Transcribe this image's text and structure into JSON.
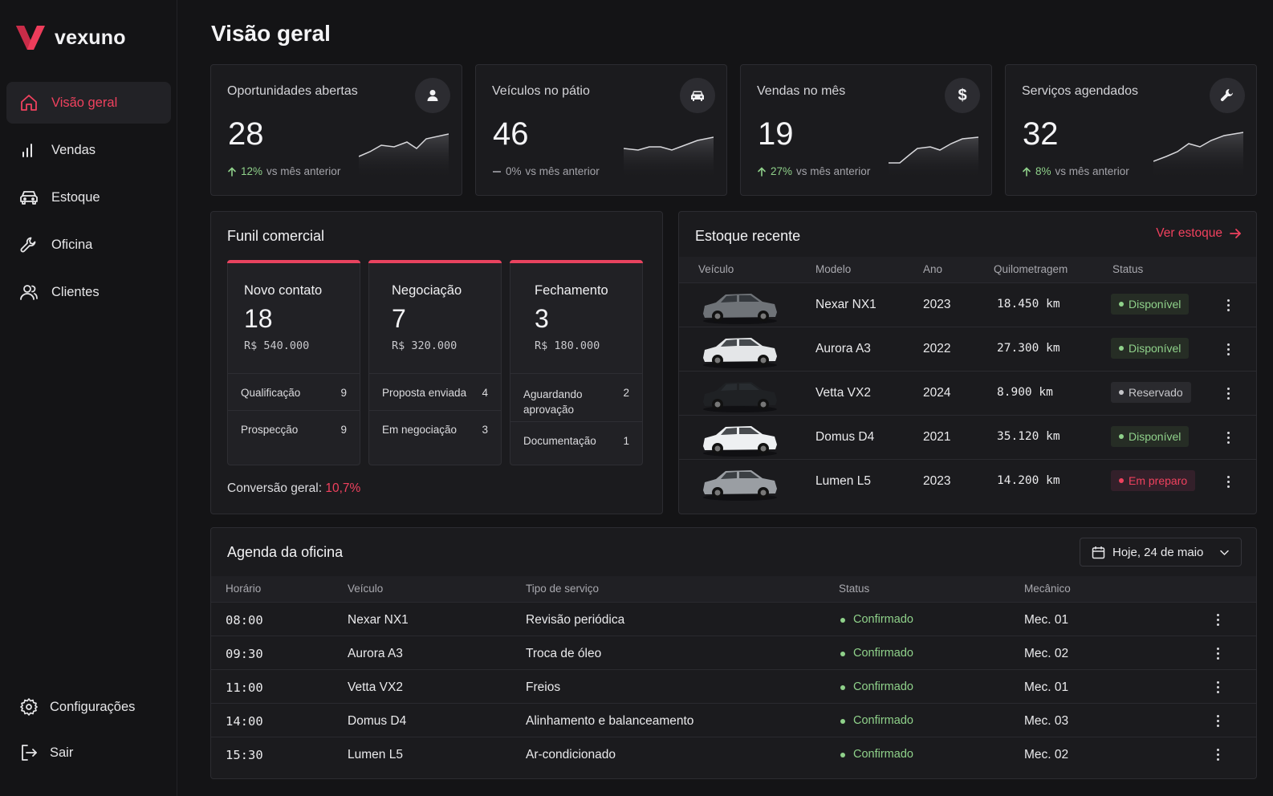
{
  "brand": {
    "name": "vexuno",
    "accent": "#f0415e"
  },
  "nav": {
    "items": [
      {
        "label": "Visão geral",
        "icon": "home-icon",
        "active": true
      },
      {
        "label": "Vendas",
        "icon": "bar-chart-icon"
      },
      {
        "label": "Estoque",
        "icon": "car-icon"
      },
      {
        "label": "Oficina",
        "icon": "wrench-icon"
      },
      {
        "label": "Clientes",
        "icon": "users-icon"
      }
    ],
    "bottom": [
      {
        "label": "Configurações",
        "icon": "gear-icon"
      },
      {
        "label": "Sair",
        "icon": "logout-icon"
      }
    ]
  },
  "page": {
    "title": "Visão geral"
  },
  "kpis": [
    {
      "title": "Oportunidades abertas",
      "value": "28",
      "pct": "12%",
      "suffix": "vs mês anterior",
      "trend": "up",
      "icon": "user-icon"
    },
    {
      "title": "Veículos no pátio",
      "value": "46",
      "pct": "0%",
      "suffix": "vs mês anterior",
      "trend": "flat",
      "icon": "car-icon"
    },
    {
      "title": "Vendas no mês",
      "value": "19",
      "pct": "27%",
      "suffix": "vs mês anterior",
      "trend": "up",
      "icon": "dollar-icon"
    },
    {
      "title": "Serviços agendados",
      "value": "32",
      "pct": "8%",
      "suffix": "vs mês anterior",
      "trend": "up",
      "icon": "wrench-icon"
    }
  ],
  "funnel": {
    "title": "Funil comercial",
    "stages": [
      {
        "name": "Novo contato",
        "count": "18",
        "amount": "R$ 540.000",
        "sub": [
          {
            "label": "Qualificação",
            "value": "9"
          },
          {
            "label": "Prospecção",
            "value": "9"
          }
        ]
      },
      {
        "name": "Negociação",
        "count": "7",
        "amount": "R$ 320.000",
        "sub": [
          {
            "label": "Proposta enviada",
            "value": "4"
          },
          {
            "label": "Em negociação",
            "value": "3"
          }
        ]
      },
      {
        "name": "Fechamento",
        "count": "3",
        "amount": "R$ 180.000",
        "sub": [
          {
            "label": "Aguardando aprovação",
            "value": "2"
          },
          {
            "label": "Documentação",
            "value": "1"
          }
        ]
      }
    ],
    "conversion_label": "Conversão geral:",
    "conversion_value": "10,7%"
  },
  "stock": {
    "title": "Estoque recente",
    "link": "Ver estoque",
    "columns": [
      "Veículo",
      "Modelo",
      "Ano",
      "Quilometragem",
      "Status"
    ],
    "rows": [
      {
        "model": "Nexar NX1",
        "year": "2023",
        "km": "18.450 km",
        "status": "Disponível",
        "status_kind": "ok",
        "car_color": "#6f7378"
      },
      {
        "model": "Aurora A3",
        "year": "2022",
        "km": "27.300 km",
        "status": "Disponível",
        "status_kind": "ok",
        "car_color": "#e4e6e8"
      },
      {
        "model": "Vetta VX2",
        "year": "2024",
        "km": "8.900 km",
        "status": "Reservado",
        "status_kind": "res",
        "car_color": "#1f2124"
      },
      {
        "model": "Domus D4",
        "year": "2021",
        "km": "35.120 km",
        "status": "Disponível",
        "status_kind": "ok",
        "car_color": "#eef0f2"
      },
      {
        "model": "Lumen L5",
        "year": "2023",
        "km": "14.200 km",
        "status": "Em preparo",
        "status_kind": "prep",
        "car_color": "#9a9ea3"
      }
    ]
  },
  "agenda": {
    "title": "Agenda da oficina",
    "date": "Hoje, 24 de maio",
    "columns": [
      "Horário",
      "Veículo",
      "Tipo de serviço",
      "Status",
      "Mecânico"
    ],
    "rows": [
      {
        "time": "08:00",
        "vehicle": "Nexar NX1",
        "service": "Revisão periódica",
        "status": "Confirmado",
        "mechanic": "Mec. 01"
      },
      {
        "time": "09:30",
        "vehicle": "Aurora A3",
        "service": "Troca de óleo",
        "status": "Confirmado",
        "mechanic": "Mec. 02"
      },
      {
        "time": "11:00",
        "vehicle": "Vetta VX2",
        "service": "Freios",
        "status": "Confirmado",
        "mechanic": "Mec. 01"
      },
      {
        "time": "14:00",
        "vehicle": "Domus D4",
        "service": "Alinhamento e balanceamento",
        "status": "Confirmado",
        "mechanic": "Mec. 03"
      },
      {
        "time": "15:30",
        "vehicle": "Lumen L5",
        "service": "Ar-condicionado",
        "status": "Confirmado",
        "mechanic": "Mec. 02"
      }
    ]
  }
}
